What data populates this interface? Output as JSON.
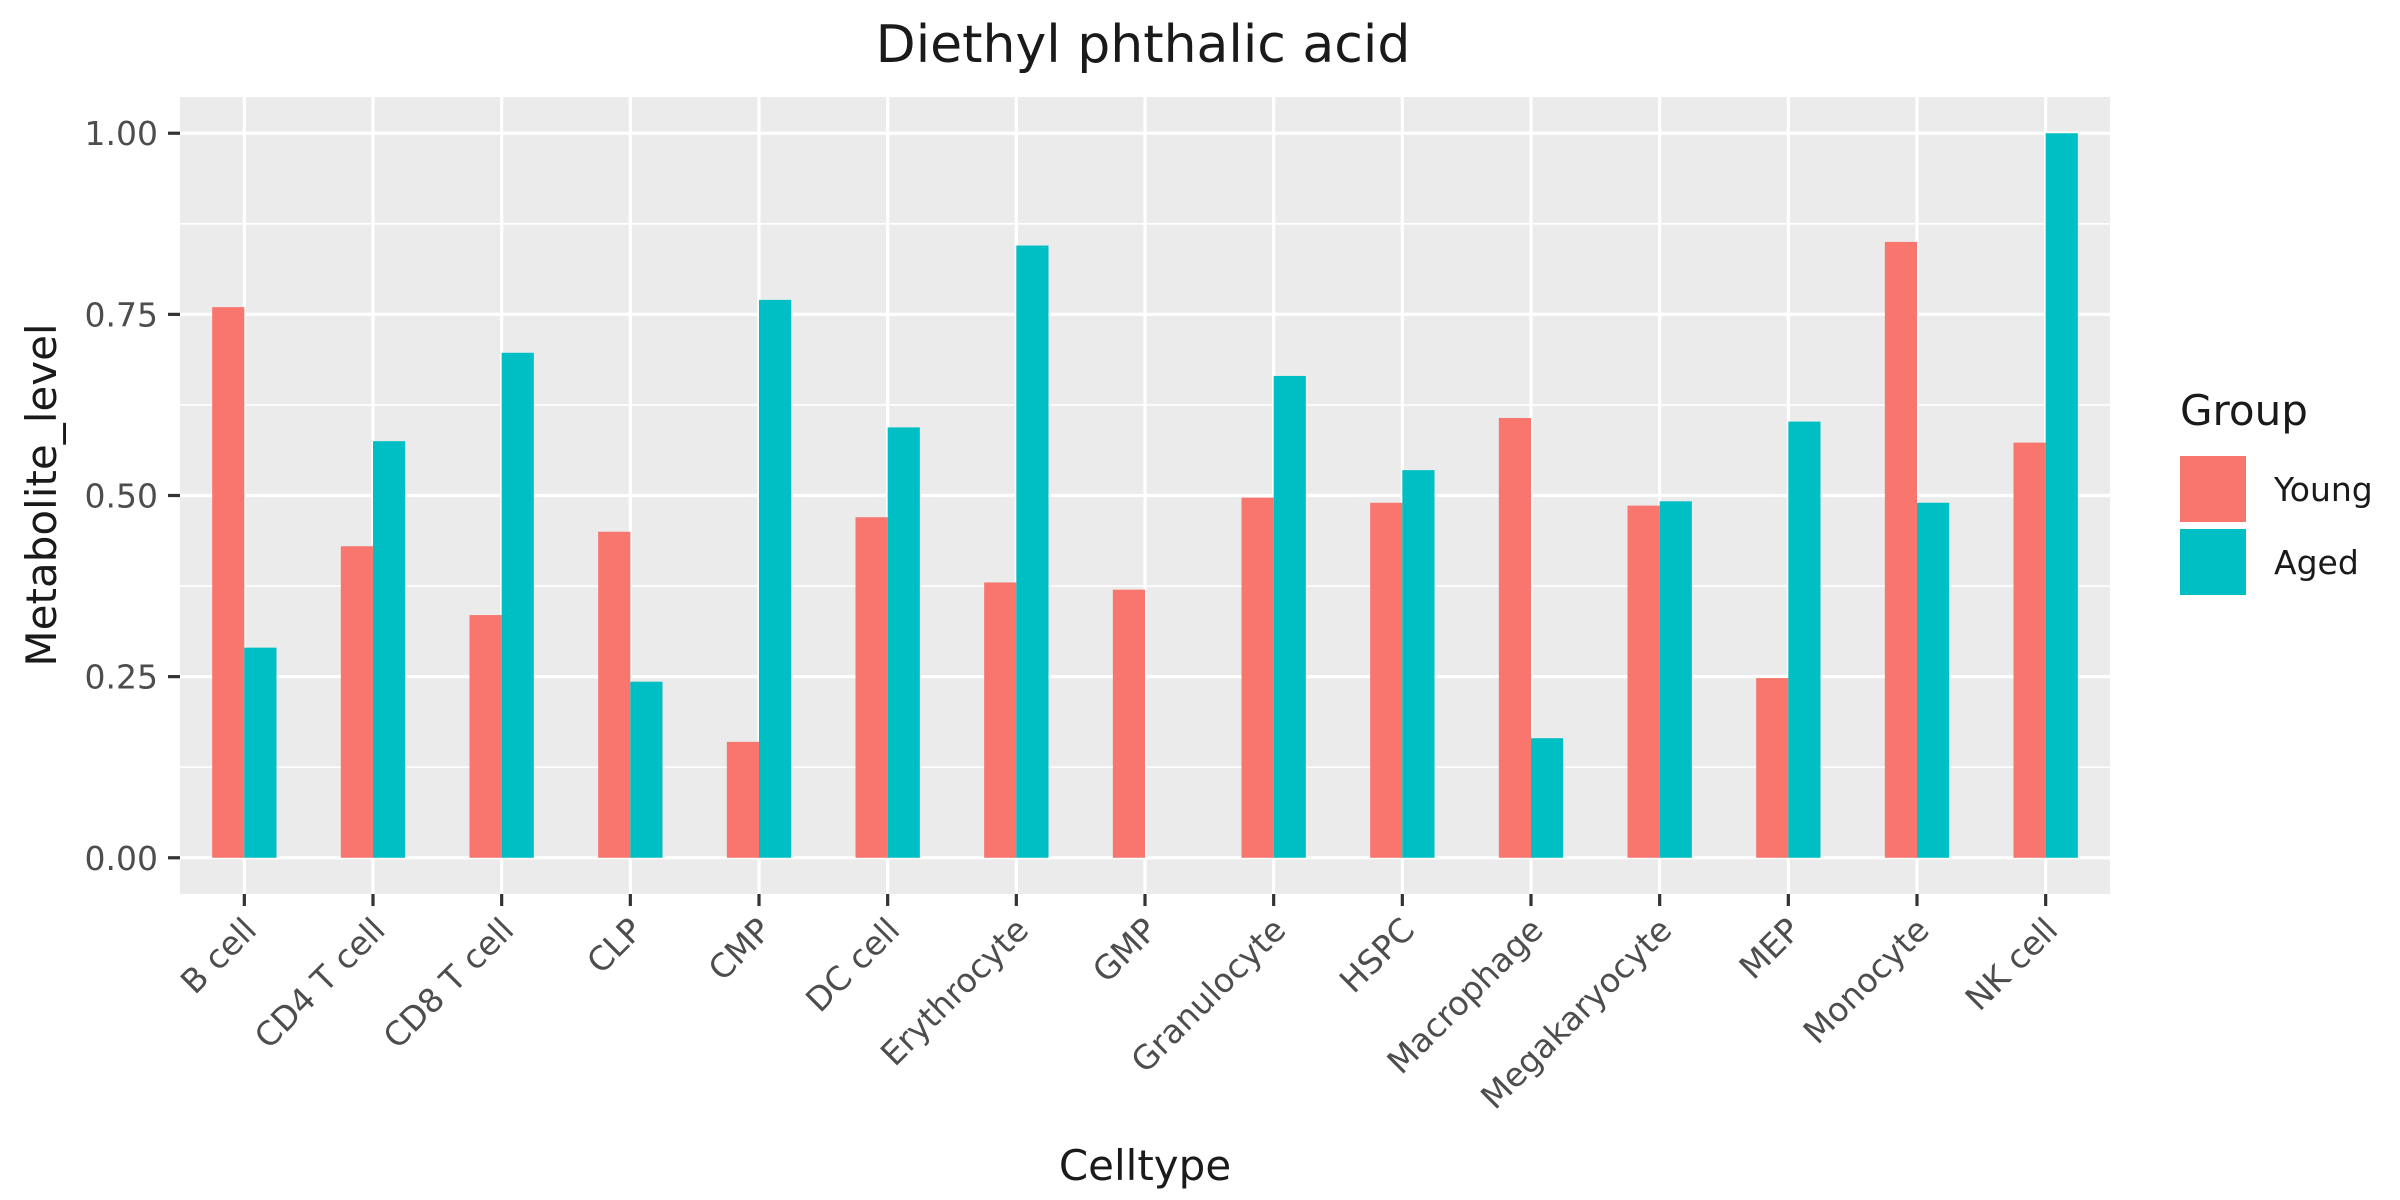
{
  "chart_data": {
    "type": "bar",
    "title": "Diethyl phthalic acid",
    "xlabel": "Celltype",
    "ylabel": "Metabolite_level",
    "ylim": [
      -0.05,
      1.05
    ],
    "yticks": [
      0,
      0.25,
      0.5,
      0.75,
      1
    ],
    "ytick_labels": [
      "0.00",
      "0.25",
      "0.50",
      "0.75",
      "1.00"
    ],
    "grid": true,
    "legend": {
      "title": "Group",
      "position": "right"
    },
    "categories": [
      "B cell",
      "CD4 T cell",
      "CD8 T cell",
      "CLP",
      "CMP",
      "DC cell",
      "Erythrocyte",
      "GMP",
      "Granulocyte",
      "HSPC",
      "Macrophage",
      "Megakaryocyte",
      "MEP",
      "Monocyte",
      "NK cell"
    ],
    "series": [
      {
        "name": "Young",
        "color": "#F8766D",
        "values": [
          0.76,
          0.43,
          0.335,
          0.45,
          0.16,
          0.47,
          0.38,
          0.37,
          0.497,
          0.49,
          0.607,
          0.486,
          0.248,
          0.85,
          0.573
        ]
      },
      {
        "name": "Aged",
        "color": "#00BFC4",
        "values": [
          0.29,
          0.575,
          0.697,
          0.243,
          0.77,
          0.594,
          0.845,
          0.0,
          0.665,
          0.535,
          0.165,
          0.492,
          0.602,
          0.49,
          1.0
        ]
      }
    ]
  },
  "colors": {
    "panel_background": "#EBEBEB",
    "grid": "#FFFFFF",
    "tick": "#333333"
  }
}
